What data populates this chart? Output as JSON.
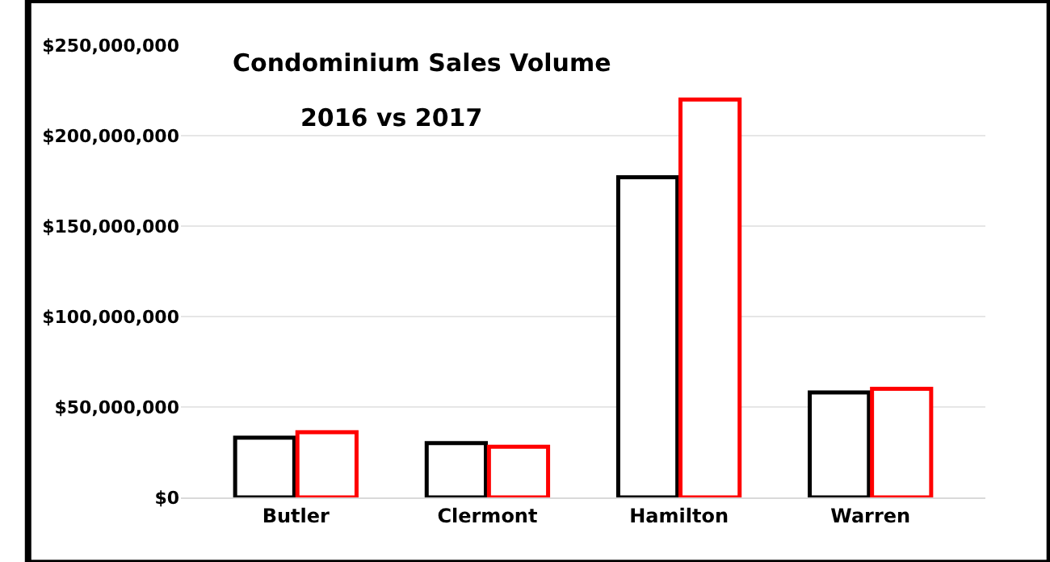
{
  "chart_data": {
    "type": "bar",
    "title": "Condominium Sales Volume",
    "subtitle": "2016 vs 2017",
    "categories": [
      "Butler",
      "Clermont",
      "Hamilton",
      "Warren"
    ],
    "series": [
      {
        "color": "#000000",
        "values": [
          33000000,
          30000000,
          177000000,
          58000000
        ]
      },
      {
        "color": "#ff0000",
        "values": [
          36000000,
          28000000,
          220000000,
          60000000
        ]
      }
    ],
    "ylim": [
      0,
      250000000
    ],
    "yticks": [
      {
        "value": 0,
        "label": "$0"
      },
      {
        "value": 50000000,
        "label": "$50,000,000"
      },
      {
        "value": 100000000,
        "label": "$100,000,000"
      },
      {
        "value": 150000000,
        "label": "$150,000,000"
      },
      {
        "value": 200000000,
        "label": "$200,000,000"
      },
      {
        "value": 250000000,
        "label": "$250,000,000"
      }
    ],
    "grid": "y"
  }
}
